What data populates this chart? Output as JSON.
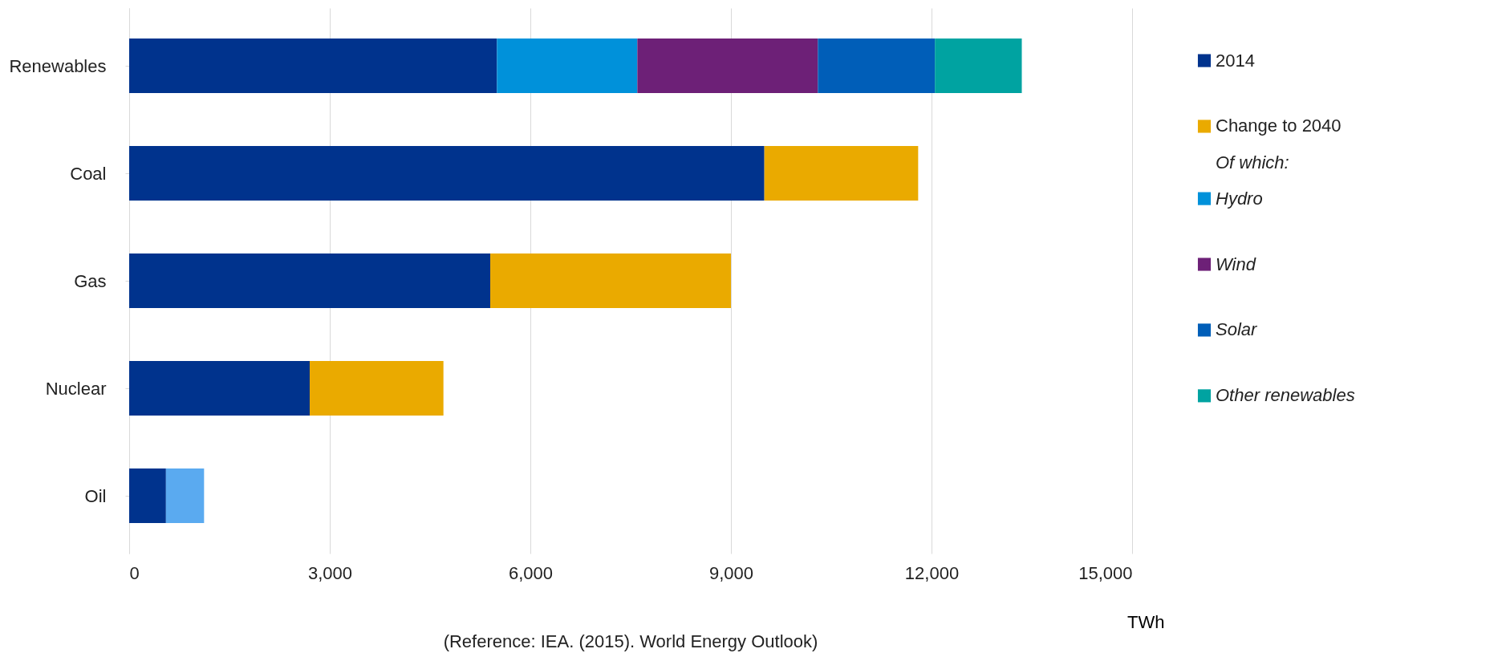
{
  "chart_data": {
    "type": "bar",
    "orientation": "horizontal",
    "stacked": true,
    "categories": [
      "Renewables",
      "Coal",
      "Gas",
      "Nuclear",
      "Oil"
    ],
    "series": [
      {
        "name": "2014",
        "color": "#00338d",
        "values": [
          5500,
          9500,
          5400,
          2700,
          550
        ]
      },
      {
        "name": "Change to 2040",
        "color": "#eaaa00",
        "values": [
          null,
          2300,
          3600,
          2000,
          null
        ]
      },
      {
        "name": "Hydro",
        "color": "#0091da",
        "values": [
          2100,
          null,
          null,
          null,
          null
        ]
      },
      {
        "name": "Wind",
        "color": "#6d2077",
        "values": [
          2700,
          null,
          null,
          null,
          null
        ]
      },
      {
        "name": "Solar",
        "color": "#005eb8",
        "values": [
          1750,
          null,
          null,
          null,
          null
        ]
      },
      {
        "name": "Other renewables",
        "color": "#00a3a1",
        "values": [
          1300,
          null,
          null,
          null,
          null
        ]
      },
      {
        "color": "#5aaaf0",
        "values": [
          null,
          null,
          null,
          null,
          570
        ]
      }
    ],
    "xlim": [
      0,
      15000
    ],
    "xticks": [
      0,
      {
        "value": 3000,
        "label": "3,000"
      },
      {
        "value": 6000,
        "label": "6,000"
      },
      {
        "value": 9000,
        "label": "9,000"
      },
      {
        "value": 12000,
        "label": "12,000"
      },
      {
        "value": 15000,
        "label": "15,000"
      }
    ],
    "xlabel": "TWh",
    "grid": "x",
    "legend": "right",
    "annotations": [
      "Of which:",
      "(Reference: IEA. (2015). World Energy Outlook)"
    ]
  }
}
